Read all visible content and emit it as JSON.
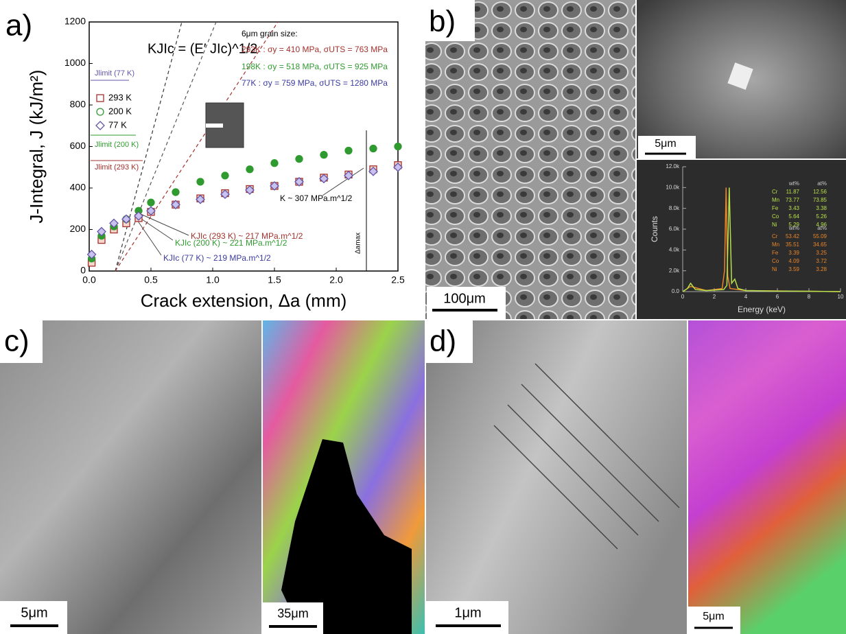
{
  "chart_data": [
    {
      "type": "scatter",
      "xlabel": "Crack extension, Δa (mm)",
      "ylabel": "J-Integral, J (kJ/m²)",
      "xlim": [
        0,
        2.5
      ],
      "xticks": [
        {
          "value": 0,
          "label": "0.0"
        },
        0.5,
        {
          "value": 1,
          "label": "1.0"
        },
        1.5,
        {
          "value": 2,
          "label": "2.0"
        },
        2.5
      ],
      "ylim": [
        0,
        1200
      ],
      "yticks": [
        0,
        200,
        400,
        600,
        800,
        1000,
        1200
      ],
      "series": [
        {
          "name": "293 K",
          "color": "#a3302b",
          "marker": "square",
          "x": [
            0.02,
            0.1,
            0.2,
            0.3,
            0.4,
            0.5,
            0.7,
            0.9,
            1.1,
            1.3,
            1.5,
            1.7,
            1.9,
            2.1,
            2.3,
            2.5
          ],
          "values": [
            40,
            150,
            200,
            230,
            255,
            285,
            320,
            350,
            375,
            395,
            410,
            430,
            450,
            465,
            490,
            510
          ]
        },
        {
          "name": "200 K",
          "color": "#2f9a2f",
          "marker": "circle",
          "x": [
            0.02,
            0.1,
            0.2,
            0.3,
            0.4,
            0.5,
            0.7,
            0.9,
            1.1,
            1.3,
            1.5,
            1.7,
            1.9,
            2.1,
            2.3,
            2.5
          ],
          "values": [
            60,
            170,
            215,
            250,
            290,
            330,
            380,
            430,
            460,
            490,
            520,
            540,
            560,
            580,
            590,
            600
          ]
        },
        {
          "name": "77 K",
          "color": "#6455a6",
          "marker": "diamond",
          "x": [
            0.02,
            0.1,
            0.2,
            0.3,
            0.4,
            0.5,
            0.7,
            0.9,
            1.1,
            1.3,
            1.5,
            1.7,
            1.9,
            2.1,
            2.3,
            2.5
          ],
          "values": [
            80,
            190,
            230,
            250,
            265,
            290,
            320,
            345,
            370,
            390,
            410,
            430,
            445,
            460,
            480,
            500
          ]
        }
      ],
      "annotations": [
        "KJIc = (E′ JIc)^1/2",
        "6μm grain size:",
        "293K : σy = 410 MPa, σUTS = 763 MPa",
        "198K : σy = 518 MPa, σUTS = 925 MPa",
        "77K : σy = 759 MPa, σUTS = 1280 MPa",
        "Jlimit (77 K)",
        "Jlimit (200 K)",
        "Jlimit (293 K)",
        "K ~ 307 MPa.m^1/2",
        "KJIc (293 K) ~ 217 MPa.m^1/2",
        "KJIc (200 K) ~ 221 MPa.m^1/2",
        "KJIc (77 K) ~ 219 MPa.m^1/2",
        "Δamax"
      ]
    },
    {
      "type": "line",
      "xlabel": "Energy (keV)",
      "ylabel": "Counts",
      "xlim": [
        0,
        10
      ],
      "xticks": [
        0,
        2,
        4,
        6,
        8,
        10
      ],
      "ylim": [
        0,
        12000
      ],
      "yticks": [
        {
          "value": 0,
          "label": "0.0"
        },
        {
          "value": 2000,
          "label": "2.0k"
        },
        {
          "value": 4000,
          "label": "4.0k"
        },
        {
          "value": 6000,
          "label": "6.0k"
        },
        {
          "value": 8000,
          "label": "8.0k"
        },
        {
          "value": 10000,
          "label": "10.0k"
        },
        {
          "value": 12000,
          "label": "12.0k"
        }
      ],
      "series": [
        {
          "name": null,
          "color": "#e8862a",
          "x": [
            0,
            0.5,
            1.5,
            2.5,
            2.65,
            2.75,
            2.85,
            3.0,
            4,
            10
          ],
          "values": [
            0,
            500,
            100,
            300,
            2000,
            10000,
            1500,
            300,
            100,
            0
          ]
        },
        {
          "name": null,
          "color": "#b8e04a",
          "x": [
            0,
            0.3,
            0.5,
            0.8,
            1.5,
            2.6,
            2.8,
            2.95,
            3.1,
            3.3,
            3.5,
            4,
            6,
            8,
            10
          ],
          "values": [
            0,
            300,
            800,
            200,
            100,
            200,
            600,
            10000,
            800,
            1200,
            300,
            100,
            50,
            30,
            0
          ]
        }
      ]
    }
  ],
  "eds_table": {
    "headers": [
      "wt%",
      "at%"
    ],
    "green_rows": [
      [
        "Cr",
        "11.87",
        "12.56"
      ],
      [
        "Mn",
        "73.77",
        "73.85"
      ],
      [
        "Fe",
        "3.43",
        "3.38"
      ],
      [
        "Co",
        "5.64",
        "5.26"
      ],
      [
        "Ni",
        "5.29",
        "4.96"
      ]
    ],
    "orange_rows": [
      [
        "Cr",
        "53.42",
        "55.09"
      ],
      [
        "Mn",
        "35.51",
        "34.65"
      ],
      [
        "Fe",
        "3.39",
        "3.25"
      ],
      [
        "Co",
        "4.09",
        "3.72"
      ],
      [
        "Ni",
        "3.59",
        "3.28"
      ]
    ]
  },
  "panels": [
    "a)",
    "b)",
    "c)",
    "d)"
  ],
  "scale_bars": [
    "100μm",
    "5μm",
    "5μm",
    "35μm",
    "1μm",
    "5μm"
  ]
}
